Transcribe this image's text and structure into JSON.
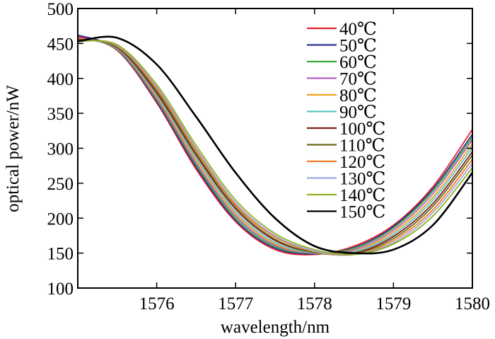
{
  "chart_data": {
    "type": "line",
    "title": "",
    "xlabel": "wavelength/nm",
    "ylabel": "optical power/nW",
    "xlim": [
      1575,
      1580
    ],
    "ylim": [
      100,
      500
    ],
    "xticks": [
      1576,
      1577,
      1578,
      1579,
      1580
    ],
    "xtick_labels": [
      "1576",
      "1577",
      "1578",
      "1579",
      "1580"
    ],
    "yticks": [
      100,
      150,
      200,
      250,
      300,
      350,
      400,
      450,
      500
    ],
    "ytick_labels": [
      "100",
      "150",
      "200",
      "250",
      "300",
      "350",
      "400",
      "450",
      "500"
    ],
    "grid": false,
    "legend_position": "top-right",
    "series": [
      {
        "name": "40℃",
        "color": "#e8202a",
        "x": [
          1575.0,
          1575.5,
          1576.0,
          1576.5,
          1577.0,
          1577.5,
          1578.0,
          1578.5,
          1579.0,
          1579.5,
          1580.0
        ],
        "y": [
          460,
          440,
          365,
          270,
          195,
          155,
          148,
          160,
          190,
          245,
          327
        ]
      },
      {
        "name": "50℃",
        "color": "#2e3192",
        "x": [
          1575.0,
          1575.5,
          1576.0,
          1576.5,
          1577.0,
          1577.5,
          1578.0,
          1578.5,
          1579.0,
          1579.5,
          1580.0
        ],
        "y": [
          462,
          441,
          367,
          273,
          197,
          157,
          149,
          158,
          188,
          242,
          320
        ]
      },
      {
        "name": "60℃",
        "color": "#39a935",
        "x": [
          1575.0,
          1575.5,
          1576.0,
          1576.5,
          1577.0,
          1577.5,
          1578.0,
          1578.5,
          1579.0,
          1579.5,
          1580.0
        ],
        "y": [
          458,
          441,
          369,
          276,
          200,
          159,
          150,
          157,
          186,
          239,
          316
        ]
      },
      {
        "name": "70℃",
        "color": "#b05fc0",
        "x": [
          1575.0,
          1575.5,
          1576.0,
          1576.5,
          1577.0,
          1577.5,
          1578.0,
          1578.5,
          1579.0,
          1579.5,
          1580.0
        ],
        "y": [
          458,
          442,
          371,
          279,
          203,
          161,
          150,
          155,
          183,
          235,
          312
        ]
      },
      {
        "name": "80℃",
        "color": "#f0a21c",
        "x": [
          1575.0,
          1575.5,
          1576.0,
          1576.5,
          1577.0,
          1577.5,
          1578.0,
          1578.5,
          1579.0,
          1579.5,
          1580.0
        ],
        "y": [
          457,
          443,
          374,
          283,
          206,
          163,
          150,
          153,
          180,
          230,
          306
        ]
      },
      {
        "name": "90℃",
        "color": "#5cc3c8",
        "x": [
          1575.0,
          1575.5,
          1576.0,
          1576.5,
          1577.0,
          1577.5,
          1578.0,
          1578.5,
          1579.0,
          1579.5,
          1580.0
        ],
        "y": [
          456,
          443,
          376,
          286,
          209,
          165,
          150,
          152,
          177,
          226,
          301
        ]
      },
      {
        "name": "100℃",
        "color": "#7a1f1a",
        "x": [
          1575.0,
          1575.5,
          1576.0,
          1576.5,
          1577.0,
          1577.5,
          1578.0,
          1578.5,
          1579.0,
          1579.5,
          1580.0
        ],
        "y": [
          456,
          444,
          379,
          290,
          213,
          168,
          151,
          150,
          174,
          221,
          295
        ]
      },
      {
        "name": "110℃",
        "color": "#6b6b1a",
        "x": [
          1575.0,
          1575.5,
          1576.0,
          1576.5,
          1577.0,
          1577.5,
          1578.0,
          1578.5,
          1579.0,
          1579.5,
          1580.0
        ],
        "y": [
          455,
          445,
          382,
          293,
          216,
          170,
          151,
          149,
          171,
          217,
          290
        ]
      },
      {
        "name": "120℃",
        "color": "#f07823",
        "x": [
          1575.0,
          1575.5,
          1576.0,
          1576.5,
          1577.0,
          1577.5,
          1578.0,
          1578.5,
          1579.0,
          1579.5,
          1580.0
        ],
        "y": [
          454,
          446,
          385,
          297,
          219,
          173,
          152,
          148,
          168,
          212,
          284
        ]
      },
      {
        "name": "130℃",
        "color": "#9aa6dc",
        "x": [
          1575.0,
          1575.5,
          1576.0,
          1576.5,
          1577.0,
          1577.5,
          1578.0,
          1578.5,
          1579.0,
          1579.5,
          1580.0
        ],
        "y": [
          454,
          447,
          388,
          300,
          222,
          175,
          153,
          148,
          165,
          208,
          278
        ]
      },
      {
        "name": "140℃",
        "color": "#8fb21f",
        "x": [
          1575.0,
          1575.5,
          1576.0,
          1576.5,
          1577.0,
          1577.5,
          1578.0,
          1578.5,
          1579.0,
          1579.5,
          1580.0
        ],
        "y": [
          453,
          448,
          391,
          304,
          226,
          178,
          155,
          148,
          163,
          203,
          272
        ]
      },
      {
        "name": "150℃",
        "color": "#000000",
        "x": [
          1575.0,
          1575.5,
          1576.0,
          1576.5,
          1577.0,
          1577.5,
          1578.0,
          1578.5,
          1579.0,
          1579.5,
          1580.0
        ],
        "y": [
          453,
          458,
          420,
          345,
          265,
          200,
          160,
          150,
          155,
          190,
          265
        ]
      }
    ]
  }
}
